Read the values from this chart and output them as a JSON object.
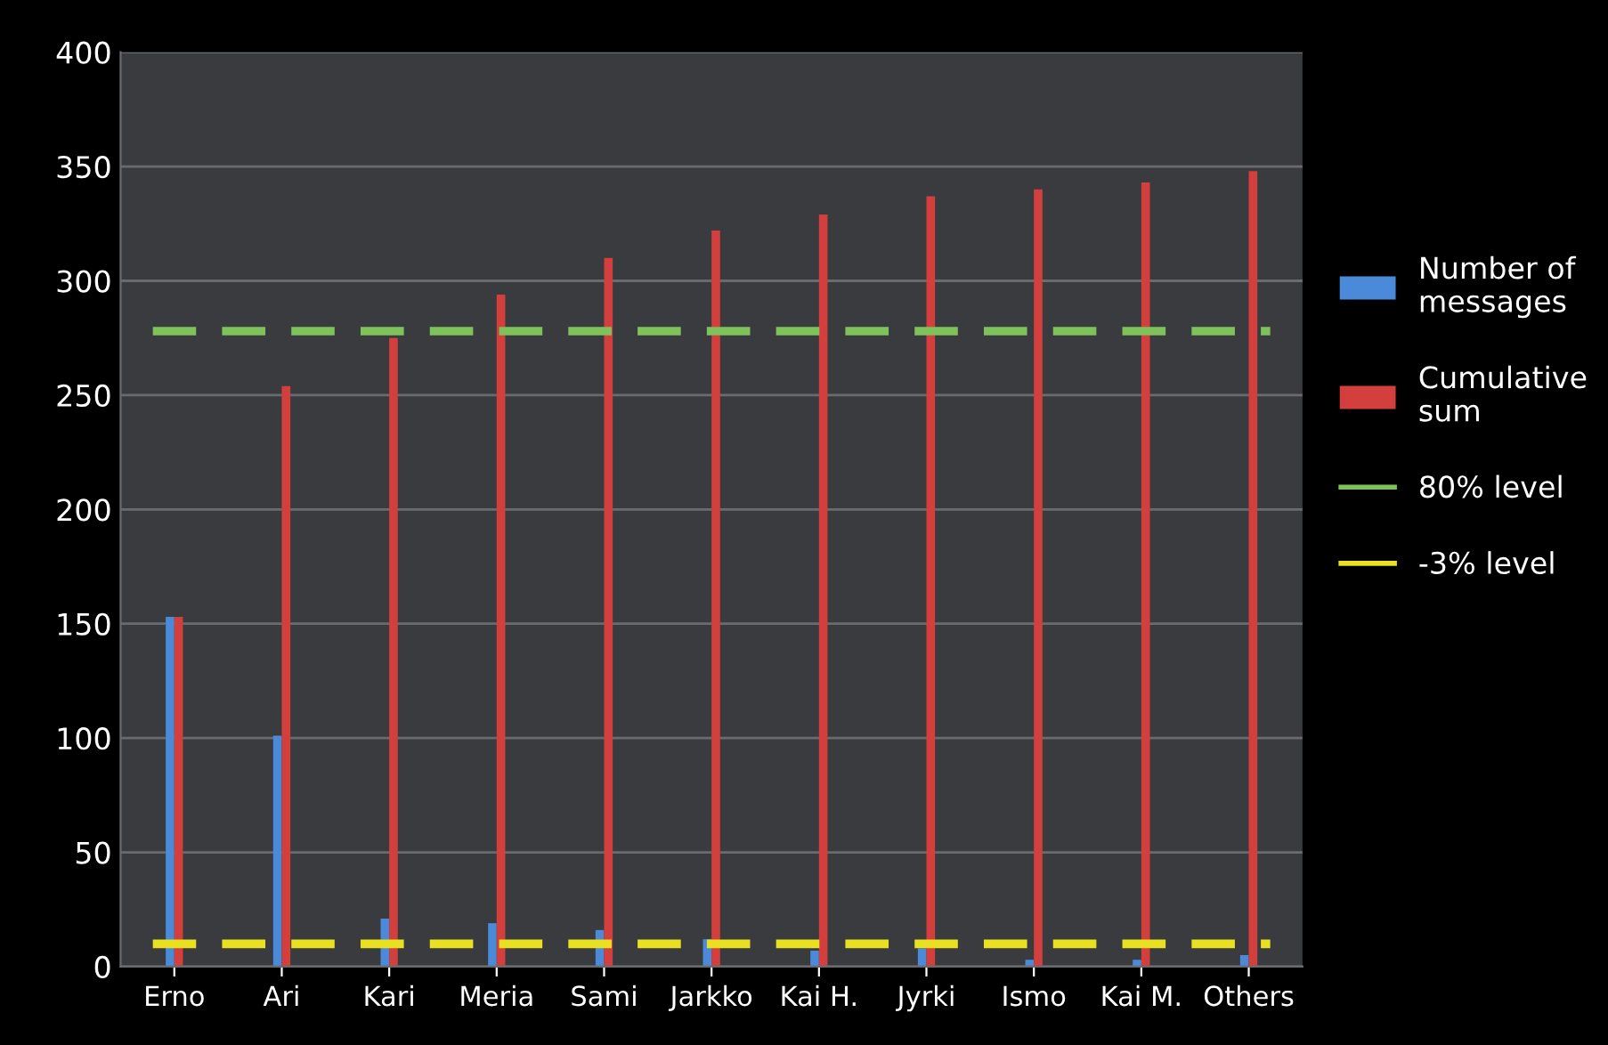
{
  "chart_data": {
    "type": "bar",
    "categories": [
      "Erno",
      "Ari",
      "Kari",
      "Meria",
      "Sami",
      "Jarkko",
      "Kai H.",
      "Jyrki",
      "Ismo",
      "Kai M.",
      "Others"
    ],
    "series": [
      {
        "name": "Number of\nmessages",
        "color": "#4a8ad8",
        "values": [
          153,
          101,
          21,
          19,
          16,
          12,
          7,
          8,
          3,
          3,
          5
        ]
      },
      {
        "name": "Cumulative\nsum",
        "color": "#d23f3c",
        "values": [
          153,
          254,
          275,
          294,
          310,
          322,
          329,
          337,
          340,
          343,
          348
        ]
      }
    ],
    "ref_lines": [
      {
        "axis": "y",
        "value": 278,
        "label": "80% level",
        "color": "#7fc15a",
        "line_style": "dashed"
      },
      {
        "axis": "y",
        "value": 10,
        "label": "-3% level",
        "color": "#e8e020",
        "line_style": "dashed"
      }
    ],
    "ylim": [
      0,
      400
    ],
    "yticks": [
      0,
      50,
      100,
      150,
      200,
      250,
      300,
      350,
      400
    ],
    "grid": "y",
    "legend": "right"
  }
}
